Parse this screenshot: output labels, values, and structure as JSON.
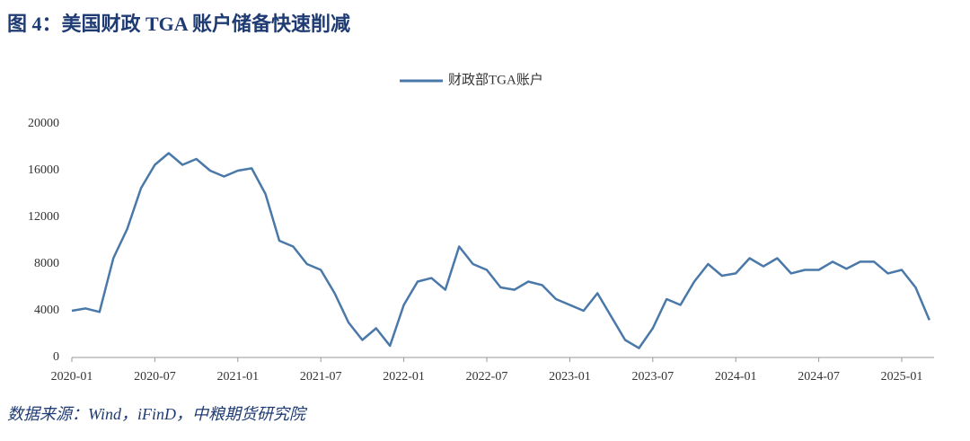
{
  "chart_data": {
    "type": "line",
    "title": "图 4：美国财政 TGA 账户储备快速削减",
    "source": "数据来源：Wind，iFinD，中粮期货研究院",
    "x": [
      "2020-01",
      "2020-02",
      "2020-03",
      "2020-04",
      "2020-05",
      "2020-06",
      "2020-07",
      "2020-08",
      "2020-09",
      "2020-10",
      "2020-11",
      "2020-12",
      "2021-01",
      "2021-02",
      "2021-03",
      "2021-04",
      "2021-05",
      "2021-06",
      "2021-07",
      "2021-08",
      "2021-09",
      "2021-10",
      "2021-11",
      "2021-12",
      "2022-01",
      "2022-02",
      "2022-03",
      "2022-04",
      "2022-05",
      "2022-06",
      "2022-07",
      "2022-08",
      "2022-09",
      "2022-10",
      "2022-11",
      "2022-12",
      "2023-01",
      "2023-02",
      "2023-03",
      "2023-04",
      "2023-05",
      "2023-06",
      "2023-07",
      "2023-08",
      "2023-09",
      "2023-10",
      "2023-11",
      "2023-12",
      "2024-01",
      "2024-02",
      "2024-03",
      "2024-04",
      "2024-05",
      "2024-06",
      "2024-07",
      "2024-08",
      "2024-09",
      "2024-10",
      "2024-11",
      "2024-12",
      "2025-01",
      "2025-02",
      "2025-03"
    ],
    "series": [
      {
        "name": "财政部TGA账户",
        "color": "#4a78a8",
        "values": [
          4000,
          4200,
          3900,
          8500,
          11000,
          14500,
          16500,
          17500,
          16500,
          17000,
          16000,
          15500,
          16000,
          16200,
          14000,
          10000,
          9500,
          8000,
          7500,
          5500,
          3000,
          1500,
          2500,
          1000,
          4500,
          6500,
          6800,
          5800,
          9500,
          8000,
          7500,
          6000,
          5800,
          6500,
          6200,
          5000,
          4500,
          4000,
          5500,
          3500,
          1500,
          800,
          2500,
          5000,
          4500,
          6500,
          8000,
          7000,
          7200,
          8500,
          7800,
          8500,
          7200,
          7500,
          7500,
          8200,
          7600,
          8200,
          8200,
          7200,
          7500,
          6000,
          3200
        ]
      }
    ],
    "xticks": [
      "2020-01",
      "2020-07",
      "2021-01",
      "2021-07",
      "2022-01",
      "2022-07",
      "2023-01",
      "2023-07",
      "2024-01",
      "2024-07",
      "2025-01"
    ],
    "ylim": [
      0,
      20000
    ],
    "yticks": [
      0,
      4000,
      8000,
      12000,
      16000,
      20000
    ],
    "legend": "top"
  }
}
